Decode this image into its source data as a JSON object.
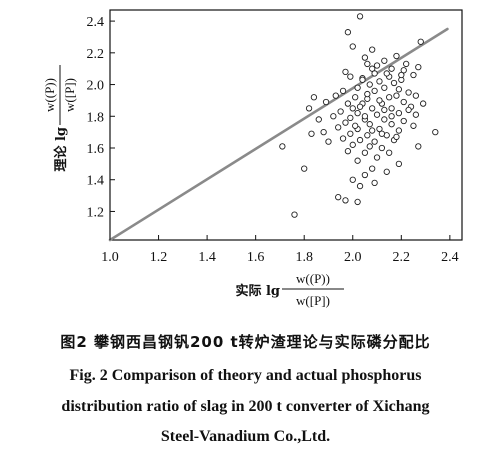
{
  "figure": {
    "caption_zh": "图2   攀钢西昌钢钒200 t转炉渣理论与实际磷分配比",
    "caption_en_lines": [
      "Fig. 2    Comparison of theory and actual phosphorus",
      "distribution ratio of slag in 200 t converter of Xichang",
      "Steel-Vanadium Co.,Ltd."
    ]
  },
  "chart_data": {
    "type": "scatter",
    "title": "",
    "xlabel": {
      "prefix": "实际 lg",
      "numerator": "w((P))",
      "denominator": "w([P])"
    },
    "ylabel": {
      "prefix": "理论 lg",
      "numerator": "w((P))",
      "denominator": "w([P])"
    },
    "xlim": [
      1.0,
      2.45
    ],
    "ylim": [
      1.02,
      2.47
    ],
    "xticks": [
      "1.0",
      "1.2",
      "1.4",
      "1.6",
      "1.8",
      "2.0",
      "2.2",
      "2.4"
    ],
    "yticks": [
      "1.2",
      "1.4",
      "1.6",
      "1.8",
      "2.0",
      "2.2",
      "2.4"
    ],
    "xtick_values": [
      1.0,
      1.2,
      1.4,
      1.6,
      1.8,
      2.0,
      2.2,
      2.4
    ],
    "ytick_values": [
      1.2,
      1.4,
      1.6,
      1.8,
      2.0,
      2.2,
      2.4
    ],
    "grid": false,
    "legend": "none",
    "line_color": "#8a8a8a",
    "reference_line": {
      "x": [
        1.0,
        2.39
      ],
      "y": [
        1.02,
        2.35
      ]
    },
    "points": [
      [
        2.03,
        2.43
      ],
      [
        1.98,
        2.33
      ],
      [
        2.28,
        2.27
      ],
      [
        2.0,
        2.24
      ],
      [
        2.08,
        2.22
      ],
      [
        2.13,
        2.15
      ],
      [
        2.18,
        2.18
      ],
      [
        2.05,
        2.17
      ],
      [
        2.22,
        2.13
      ],
      [
        2.1,
        2.12
      ],
      [
        2.08,
        2.1
      ],
      [
        1.97,
        2.08
      ],
      [
        2.27,
        2.11
      ],
      [
        1.99,
        2.05
      ],
      [
        2.15,
        2.05
      ],
      [
        2.21,
        2.09
      ],
      [
        2.25,
        2.06
      ],
      [
        2.04,
        2.04
      ],
      [
        2.11,
        2.02
      ],
      [
        2.17,
        2.01
      ],
      [
        2.07,
        2.0
      ],
      [
        2.2,
        2.03
      ],
      [
        2.02,
        1.98
      ],
      [
        2.13,
        1.98
      ],
      [
        1.96,
        1.96
      ],
      [
        2.09,
        1.96
      ],
      [
        2.19,
        1.97
      ],
      [
        2.23,
        1.95
      ],
      [
        1.93,
        1.93
      ],
      [
        2.01,
        1.92
      ],
      [
        2.06,
        1.91
      ],
      [
        2.15,
        1.92
      ],
      [
        2.26,
        1.93
      ],
      [
        1.84,
        1.92
      ],
      [
        1.89,
        1.89
      ],
      [
        1.98,
        1.88
      ],
      [
        2.04,
        1.88
      ],
      [
        2.12,
        1.88
      ],
      [
        2.21,
        1.89
      ],
      [
        2.29,
        1.88
      ],
      [
        1.82,
        1.85
      ],
      [
        2.0,
        1.85
      ],
      [
        2.08,
        1.85
      ],
      [
        2.16,
        1.85
      ],
      [
        2.24,
        1.86
      ],
      [
        1.95,
        1.83
      ],
      [
        2.02,
        1.82
      ],
      [
        2.1,
        1.81
      ],
      [
        2.19,
        1.82
      ],
      [
        2.26,
        1.81
      ],
      [
        1.92,
        1.8
      ],
      [
        1.99,
        1.79
      ],
      [
        2.05,
        1.78
      ],
      [
        2.13,
        1.78
      ],
      [
        2.21,
        1.77
      ],
      [
        1.86,
        1.78
      ],
      [
        1.97,
        1.76
      ],
      [
        2.07,
        1.75
      ],
      [
        2.16,
        1.75
      ],
      [
        2.25,
        1.74
      ],
      [
        1.94,
        1.73
      ],
      [
        2.02,
        1.72
      ],
      [
        2.11,
        1.72
      ],
      [
        2.19,
        1.71
      ],
      [
        1.88,
        1.7
      ],
      [
        1.83,
        1.69
      ],
      [
        1.99,
        1.69
      ],
      [
        2.06,
        1.68
      ],
      [
        2.14,
        1.68
      ],
      [
        2.34,
        1.7
      ],
      [
        1.96,
        1.66
      ],
      [
        2.03,
        1.65
      ],
      [
        2.09,
        1.64
      ],
      [
        2.17,
        1.65
      ],
      [
        1.9,
        1.64
      ],
      [
        1.71,
        1.61
      ],
      [
        2.0,
        1.62
      ],
      [
        2.07,
        1.61
      ],
      [
        2.12,
        1.6
      ],
      [
        2.27,
        1.61
      ],
      [
        1.98,
        1.58
      ],
      [
        2.05,
        1.57
      ],
      [
        2.15,
        1.57
      ],
      [
        2.1,
        1.54
      ],
      [
        2.02,
        1.52
      ],
      [
        2.19,
        1.5
      ],
      [
        1.8,
        1.47
      ],
      [
        2.08,
        1.47
      ],
      [
        2.14,
        1.45
      ],
      [
        2.05,
        1.43
      ],
      [
        2.0,
        1.4
      ],
      [
        2.09,
        1.38
      ],
      [
        2.03,
        1.36
      ],
      [
        1.94,
        1.29
      ],
      [
        1.97,
        1.27
      ],
      [
        2.02,
        1.26
      ],
      [
        1.76,
        1.18
      ],
      [
        2.04,
        2.03
      ],
      [
        2.14,
        2.07
      ],
      [
        2.06,
        1.94
      ],
      [
        2.11,
        1.9
      ],
      [
        2.18,
        1.93
      ],
      [
        2.03,
        1.86
      ],
      [
        2.13,
        1.84
      ],
      [
        2.23,
        1.84
      ],
      [
        2.05,
        1.8
      ],
      [
        2.16,
        1.8
      ],
      [
        2.08,
        1.71
      ],
      [
        2.12,
        1.69
      ],
      [
        2.18,
        1.67
      ],
      [
        2.01,
        1.74
      ],
      [
        2.09,
        2.07
      ],
      [
        2.2,
        2.06
      ],
      [
        2.16,
        2.1
      ],
      [
        2.06,
        2.13
      ]
    ]
  }
}
